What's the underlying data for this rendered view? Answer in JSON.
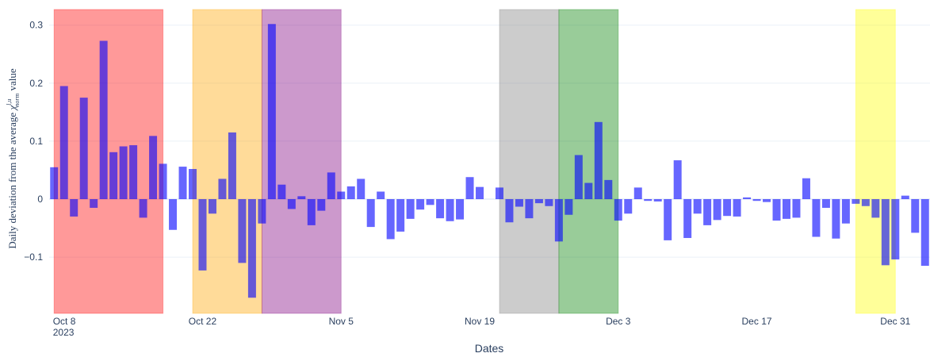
{
  "chart_data": {
    "type": "bar",
    "x_label": "Dates",
    "y_label": {
      "before": "Daily deviation from the average",
      "symbol": "χ",
      "sup": "l,u",
      "sub": "norm",
      "after": "value"
    },
    "x_start": "2023-10-07",
    "values": [
      0.055,
      0.195,
      -0.03,
      0.175,
      -0.015,
      0.273,
      0.081,
      0.091,
      0.093,
      -0.032,
      0.109,
      0.061,
      -0.053,
      0.056,
      0.052,
      -0.123,
      -0.025,
      0.035,
      0.115,
      -0.11,
      -0.17,
      -0.042,
      0.302,
      0.025,
      -0.017,
      0.005,
      -0.045,
      -0.02,
      0.046,
      0.013,
      0.022,
      0.035,
      -0.048,
      0.013,
      -0.069,
      -0.056,
      -0.034,
      -0.018,
      -0.01,
      -0.033,
      -0.038,
      -0.035,
      0.038,
      0.021,
      0,
      0.02,
      -0.04,
      -0.013,
      -0.033,
      -0.007,
      -0.012,
      -0.073,
      -0.027,
      0.076,
      0.028,
      0.133,
      0.033,
      -0.037,
      -0.025,
      0.02,
      -0.003,
      -0.004,
      -0.071,
      0.067,
      -0.067,
      -0.025,
      -0.045,
      -0.036,
      -0.029,
      -0.03,
      0.003,
      -0.003,
      -0.005,
      -0.037,
      -0.034,
      -0.032,
      0.036,
      -0.065,
      -0.015,
      -0.068,
      -0.042,
      -0.008,
      -0.012,
      -0.032,
      -0.114,
      -0.104,
      0.006,
      -0.058,
      -0.115
    ],
    "color": "#0000ff",
    "bar_opacity": 0.6,
    "xlim": [
      "2023-10-06 12:00",
      "2024-01-03 12:00"
    ],
    "xticks": [
      {
        "value": "2023-10-08",
        "label": "Oct 8\n2023"
      },
      {
        "value": "2023-10-22",
        "label": "Oct 22"
      },
      {
        "value": "2023-11-05",
        "label": "Nov 5"
      },
      {
        "value": "2023-11-19",
        "label": "Nov 19"
      },
      {
        "value": "2023-12-03",
        "label": "Dec 3"
      },
      {
        "value": "2023-12-17",
        "label": "Dec 17"
      },
      {
        "value": "2023-12-31",
        "label": "Dec 31"
      }
    ],
    "ylim": [
      -0.197,
      0.327
    ],
    "yticks": [
      {
        "value": -0.1,
        "label": "−0.1"
      },
      0,
      0.1,
      0.2,
      0.3
    ],
    "grid": true,
    "shape_opacity": 0.4,
    "shapes": [
      {
        "x0": "2023-10-07",
        "x1": "2023-10-18",
        "color": "#ff0000"
      },
      {
        "x0": "2023-10-21",
        "x1": "2023-10-28",
        "color": "#ffa500"
      },
      {
        "x0": "2023-10-28",
        "x1": "2023-11-05",
        "color": "#800080"
      },
      {
        "x0": "2023-11-21",
        "x1": "2023-11-27",
        "color": "#808080"
      },
      {
        "x0": "2023-11-27",
        "x1": "2023-12-03",
        "color": "#008000"
      },
      {
        "x0": "2023-12-27",
        "x1": "2023-12-31",
        "color": "#ffff00"
      }
    ]
  }
}
